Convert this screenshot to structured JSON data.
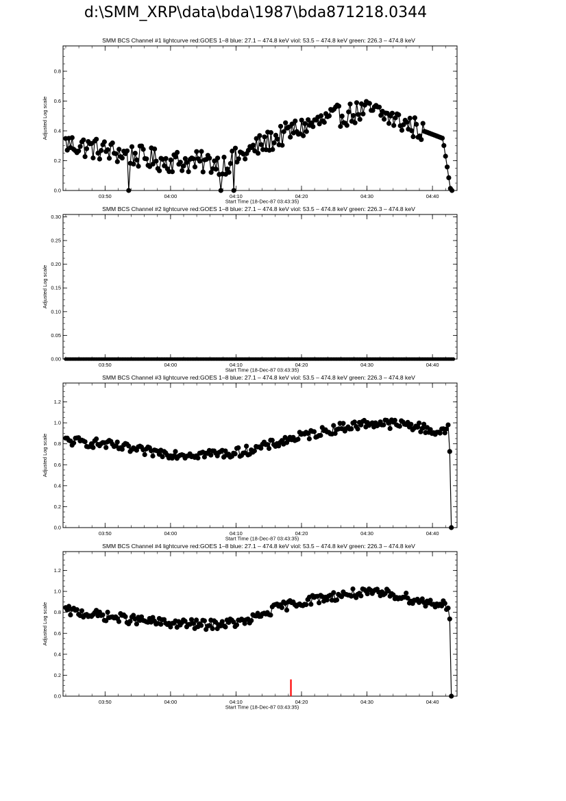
{
  "page": {
    "title": "d:\\SMM_XRP\\data\\bda\\1987\\bda871218.0344"
  },
  "chart_data": [
    {
      "type": "line",
      "title": "SMM BCS Channel #1 lightcurve  red:GOES 1–8  blue: 27.1 – 474.8 keV  viol: 53.5 – 474.8 keV  green: 226.3 – 474.8 keV",
      "xlabel": "Start Time (18-Dec-87 03:43:35)",
      "ylabel": "Adjusted Log scale",
      "xticks": [
        "03:50",
        "04:00",
        "04:10",
        "04:20",
        "04:30",
        "04:40"
      ],
      "yticks": [
        "0.0",
        "0.2",
        "0.4",
        "0.6",
        "0.8"
      ],
      "ylim": [
        0,
        0.97
      ],
      "xlim": [
        "03:43:35",
        "04:43:45"
      ],
      "x_units": "minutes since 03:43:35",
      "series": [
        {
          "color": "#000000",
          "x_start": 0.4,
          "x_end": 59.4,
          "keypoints": [
            [
              0,
              0.32
            ],
            [
              15,
              0.2
            ],
            [
              25,
              0.18
            ],
            [
              30,
              0.3
            ],
            [
              35,
              0.4
            ],
            [
              42,
              0.5
            ],
            [
              47,
              0.54
            ],
            [
              55,
              0.4
            ],
            [
              58,
              0.35
            ],
            [
              59.2,
              0.0
            ]
          ],
          "dips": [
            {
              "at": 10,
              "value": 0.0
            },
            {
              "at": 24,
              "value": 0.0
            },
            {
              "at": 26,
              "value": 0.0
            }
          ]
        }
      ]
    },
    {
      "type": "line",
      "title": "SMM BCS Channel #2 lightcurve  red:GOES 1–8  blue: 27.1 – 474.8 keV  viol: 53.5 – 474.8 keV  green: 226.3 – 474.8 keV",
      "xlabel": "Start Time (18-Dec-87 03:43:35)",
      "ylabel": "Adjusted Log scale",
      "xticks": [
        "03:50",
        "04:00",
        "04:10",
        "04:20",
        "04:30",
        "04:40"
      ],
      "yticks": [
        "0.00",
        "0.05",
        "0.10",
        "0.15",
        "0.20",
        "0.25",
        "0.30"
      ],
      "ylim": [
        0,
        0.305
      ],
      "xlim": [
        "03:43:35",
        "04:43:45"
      ],
      "x_units": "minutes since 03:43:35",
      "series": [
        {
          "color": "#000000",
          "x_start": 0.4,
          "x_end": 59.6,
          "keypoints": [
            [
              0,
              0.0
            ],
            [
              60,
              0.0
            ]
          ],
          "dips": []
        }
      ]
    },
    {
      "type": "line",
      "title": "SMM BCS Channel #3 lightcurve  red:GOES 1–8  blue: 27.1 – 474.8 keV  viol: 53.5 – 474.8 keV  green: 226.3 – 474.8 keV",
      "xlabel": "Start Time (18-Dec-87 03:43:35)",
      "ylabel": "Adjusted Log scale",
      "xticks": [
        "03:50",
        "04:00",
        "04:10",
        "04:20",
        "04:30",
        "04:40"
      ],
      "yticks": [
        "0.0",
        "0.2",
        "0.4",
        "0.6",
        "0.8",
        "1.0",
        "1.2"
      ],
      "ylim": [
        0,
        1.38
      ],
      "xlim": [
        "03:43:35",
        "04:43:45"
      ],
      "x_units": "minutes since 03:43:35",
      "series": [
        {
          "color": "#000000",
          "x_start": 0.4,
          "x_end": 59.3,
          "keypoints": [
            [
              0,
              0.83
            ],
            [
              6,
              0.8
            ],
            [
              12,
              0.73
            ],
            [
              18,
              0.7
            ],
            [
              26,
              0.71
            ],
            [
              30,
              0.76
            ],
            [
              35,
              0.85
            ],
            [
              42,
              0.95
            ],
            [
              47,
              1.0
            ],
            [
              53,
              0.98
            ],
            [
              58,
              0.9
            ],
            [
              58.9,
              0.98
            ],
            [
              59.1,
              0.65
            ],
            [
              59.3,
              0.0
            ]
          ],
          "dips": []
        }
      ]
    },
    {
      "type": "line",
      "title": "SMM BCS Channel #4 lightcurve  red:GOES 1–8  blue: 27.1 – 474.8 keV  viol: 53.5 – 474.8 keV  green: 226.3 – 474.8 keV",
      "xlabel": "Start Time (18-Dec-87 03:43:35)",
      "ylabel": "Adjusted Log scale",
      "xticks": [
        "03:50",
        "04:00",
        "04:10",
        "04:20",
        "04:30",
        "04:40"
      ],
      "yticks": [
        "0.0",
        "0.2",
        "0.4",
        "0.6",
        "0.8",
        "1.0",
        "1.2"
      ],
      "ylim": [
        0,
        1.38
      ],
      "xlim": [
        "03:43:35",
        "04:43:45"
      ],
      "x_units": "minutes since 03:43:35",
      "series": [
        {
          "color": "#000000",
          "x_start": 0.4,
          "x_end": 59.3,
          "keypoints": [
            [
              0,
              0.82
            ],
            [
              8,
              0.75
            ],
            [
              15,
              0.7
            ],
            [
              22,
              0.68
            ],
            [
              28,
              0.71
            ],
            [
              33,
              0.85
            ],
            [
              38,
              0.92
            ],
            [
              44,
              0.98
            ],
            [
              50,
              0.98
            ],
            [
              55,
              0.9
            ],
            [
              58,
              0.88
            ],
            [
              58.9,
              0.86
            ],
            [
              59.1,
              0.7
            ],
            [
              59.3,
              0.0
            ]
          ],
          "dips": []
        }
      ],
      "markers": [
        {
          "color": "#ff0000",
          "x": 34.8,
          "y0": 0.0,
          "y1": 0.16
        }
      ]
    }
  ]
}
